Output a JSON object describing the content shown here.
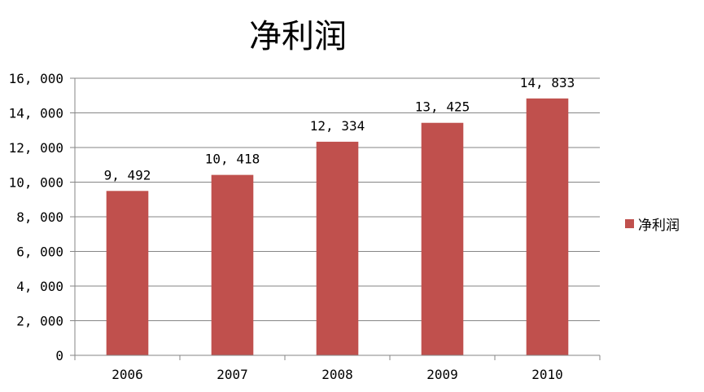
{
  "chart_data": {
    "type": "bar",
    "title": "净利润",
    "categories": [
      "2006",
      "2007",
      "2008",
      "2009",
      "2010"
    ],
    "series": [
      {
        "name": "净利润",
        "values": [
          9492,
          10418,
          12334,
          13425,
          14833
        ],
        "color": "#c0504d"
      }
    ],
    "data_labels": [
      "9, 492",
      "10, 418",
      "12, 334",
      "13, 425",
      "14, 833"
    ],
    "ylim": [
      0,
      16000
    ],
    "yticks": [
      0,
      2000,
      4000,
      6000,
      8000,
      10000,
      12000,
      14000,
      16000
    ],
    "ytick_labels": [
      "0",
      "2, 000",
      "4, 000",
      "6, 000",
      "8, 000",
      "10, 000",
      "12, 000",
      "14, 000",
      "16, 000"
    ],
    "grid": true,
    "legend_position": "right",
    "xlabel": "",
    "ylabel": ""
  }
}
